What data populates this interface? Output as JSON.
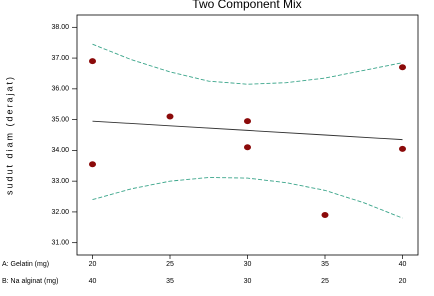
{
  "chart_data": {
    "type": "scatter",
    "title": "Two Component Mix",
    "ylabel": "sudut diam (derajat)",
    "xlim": [
      19,
      41
    ],
    "x2lim": [
      41,
      19
    ],
    "ylim": [
      30.6,
      38.4
    ],
    "yticks": [
      {
        "value": 31,
        "label": "31.00"
      },
      {
        "value": 32,
        "label": "32.00"
      },
      {
        "value": 33,
        "label": "33.00"
      },
      {
        "value": 34,
        "label": "34.00"
      },
      {
        "value": 35,
        "label": "35.00"
      },
      {
        "value": 36,
        "label": "36.00"
      },
      {
        "value": 37,
        "label": "37.00"
      },
      {
        "value": 38,
        "label": "38.00"
      }
    ],
    "x_axes": [
      {
        "label": "A: Gelatin (mg)",
        "ticks": [
          20,
          25,
          30,
          35,
          40
        ]
      },
      {
        "label": "B: Na alginat (mg)",
        "ticks": [
          40,
          35,
          30,
          25,
          20
        ]
      }
    ],
    "series": [
      {
        "mode": "markers",
        "color": "#8b0a0a",
        "x": [
          20,
          20,
          25,
          30,
          30,
          35,
          40,
          40
        ],
        "values": [
          36.9,
          33.55,
          35.1,
          34.95,
          34.1,
          31.9,
          36.7,
          34.05
        ]
      },
      {
        "mode": "line",
        "color": "#333333",
        "x": [
          20,
          25,
          30,
          35,
          40
        ],
        "values": [
          34.95,
          34.8,
          34.65,
          34.5,
          34.35
        ]
      },
      {
        "mode": "dashed",
        "color": "#3aa58a",
        "x": [
          20,
          22.5,
          25,
          27.5,
          30,
          32.5,
          35,
          37.5,
          40
        ],
        "values": [
          37.45,
          36.95,
          36.55,
          36.25,
          36.15,
          36.2,
          36.35,
          36.6,
          36.85
        ]
      },
      {
        "mode": "dashed",
        "color": "#3aa58a",
        "x": [
          20,
          22.5,
          25,
          27.5,
          30,
          32.5,
          35,
          37.5,
          40
        ],
        "values": [
          32.4,
          32.75,
          33.0,
          33.12,
          33.1,
          32.95,
          32.7,
          32.3,
          31.8
        ]
      }
    ]
  }
}
